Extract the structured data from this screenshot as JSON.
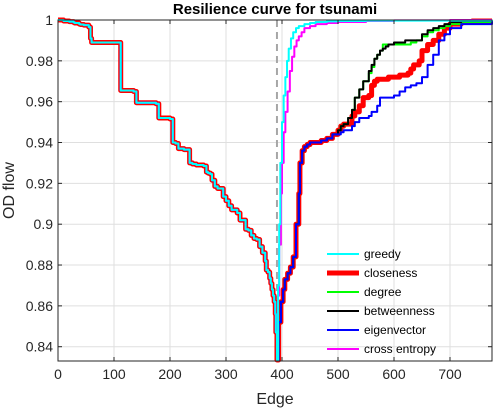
{
  "chart_data": {
    "type": "line",
    "title": "Resilience curve for tsunami",
    "xlabel": "Edge",
    "ylabel": "OD flow",
    "xlim": [
      0,
      775
    ],
    "ylim": [
      0.833,
      1.0
    ],
    "xticks": [
      0,
      100,
      200,
      300,
      400,
      500,
      600,
      700
    ],
    "yticks": [
      0.84,
      0.86,
      0.88,
      0.9,
      0.92,
      0.94,
      0.96,
      0.98,
      1
    ],
    "ytick_labels": [
      "0.84",
      "0.86",
      "0.88",
      "0.9",
      "0.92",
      "0.94",
      "0.96",
      "0.98",
      "1"
    ],
    "grid": true,
    "legend_position": "bottom-right",
    "vertical_line": {
      "x": 391,
      "style": "dashed",
      "color": "#a6a6a6"
    },
    "shared_prefix": {
      "x": [
        0,
        10,
        20,
        28,
        30,
        38,
        40,
        46,
        50,
        55,
        58,
        60,
        100,
        110,
        112,
        135,
        140,
        175,
        180,
        185,
        190,
        195,
        200,
        205,
        210,
        215,
        220,
        225,
        230,
        235,
        240,
        243,
        245,
        247,
        250,
        252,
        255,
        258,
        260,
        262,
        265,
        268,
        270,
        272,
        275,
        280,
        285,
        290,
        295,
        300,
        305,
        310,
        315,
        320,
        325,
        330,
        335,
        340,
        345,
        350,
        355,
        360,
        365,
        370,
        372,
        375,
        378,
        380,
        382,
        384,
        386,
        388,
        389,
        391
      ],
      "y": [
        1.0,
        0.9995,
        0.9992,
        0.9988,
        0.9985,
        0.998,
        0.9978,
        0.9975,
        0.9975,
        0.9965,
        0.991,
        0.989,
        0.989,
        0.989,
        0.9655,
        0.965,
        0.9595,
        0.959,
        0.952,
        0.952,
        0.952,
        0.952,
        0.9515,
        0.94,
        0.9395,
        0.937,
        0.937,
        0.9365,
        0.9365,
        0.93,
        0.9295,
        0.9295,
        0.9295,
        0.929,
        0.929,
        0.929,
        0.929,
        0.929,
        0.9285,
        0.9285,
        0.9255,
        0.925,
        0.925,
        0.9245,
        0.9215,
        0.9185,
        0.9175,
        0.9175,
        0.9135,
        0.9115,
        0.909,
        0.907,
        0.907,
        0.9055,
        0.902,
        0.902,
        0.8975,
        0.897,
        0.8945,
        0.893,
        0.8925,
        0.889,
        0.886,
        0.882,
        0.8775,
        0.8765,
        0.8735,
        0.871,
        0.868,
        0.865,
        0.862,
        0.856,
        0.847,
        0.8335
      ]
    },
    "series": [
      {
        "name": "greedy",
        "color": "#00ffff",
        "width": 2,
        "x": [
          391,
          393,
          395,
          397,
          400,
          403,
          406,
          409,
          412,
          416,
          420,
          425,
          430,
          440,
          450,
          460,
          480,
          500,
          550,
          775
        ],
        "y": [
          0.8335,
          0.87,
          0.9,
          0.93,
          0.95,
          0.963,
          0.972,
          0.98,
          0.986,
          0.991,
          0.994,
          0.996,
          0.997,
          0.998,
          0.9985,
          0.999,
          0.9993,
          0.9995,
          0.9997,
          1.0
        ]
      },
      {
        "name": "closeness",
        "color": "#ff0000",
        "width": 5,
        "x": [
          391,
          394,
          398,
          402,
          405,
          410,
          415,
          420,
          425,
          430,
          432,
          436,
          440,
          445,
          450,
          460,
          470,
          480,
          490,
          500,
          505,
          510,
          518,
          525,
          530,
          538,
          545,
          555,
          560,
          565,
          570,
          580,
          590,
          600,
          610,
          620,
          625,
          630,
          635,
          640,
          645,
          650,
          660,
          670,
          680,
          690,
          700,
          720,
          740,
          775
        ],
        "y": [
          0.8335,
          0.852,
          0.862,
          0.868,
          0.873,
          0.876,
          0.879,
          0.884,
          0.9,
          0.915,
          0.93,
          0.936,
          0.938,
          0.939,
          0.94,
          0.94,
          0.941,
          0.942,
          0.944,
          0.946,
          0.948,
          0.949,
          0.949,
          0.953,
          0.955,
          0.958,
          0.962,
          0.963,
          0.968,
          0.97,
          0.971,
          0.971,
          0.972,
          0.972,
          0.973,
          0.973,
          0.974,
          0.976,
          0.978,
          0.978,
          0.98,
          0.985,
          0.988,
          0.99,
          0.993,
          0.996,
          0.998,
          0.999,
          0.9995,
          1.0
        ]
      },
      {
        "name": "degree",
        "color": "#00ff00",
        "width": 2,
        "x": [
          391,
          394,
          398,
          402,
          405,
          410,
          415,
          420,
          425,
          430,
          432,
          436,
          440,
          445,
          450,
          460,
          470,
          480,
          490,
          500,
          505,
          510,
          518,
          525,
          530,
          538,
          545,
          555,
          560,
          565,
          570,
          575,
          580,
          585,
          595,
          610,
          630,
          640,
          650,
          660,
          670,
          680,
          690,
          700,
          720,
          775
        ],
        "y": [
          0.8335,
          0.852,
          0.862,
          0.868,
          0.873,
          0.876,
          0.879,
          0.884,
          0.9,
          0.915,
          0.93,
          0.936,
          0.938,
          0.939,
          0.94,
          0.94,
          0.941,
          0.942,
          0.944,
          0.946,
          0.948,
          0.949,
          0.952,
          0.956,
          0.962,
          0.966,
          0.97,
          0.974,
          0.977,
          0.981,
          0.983,
          0.985,
          0.988,
          0.988,
          0.988,
          0.988,
          0.989,
          0.99,
          0.992,
          0.994,
          0.995,
          0.996,
          0.997,
          0.998,
          0.999,
          1.0
        ]
      },
      {
        "name": "betweenness",
        "color": "#000000",
        "width": 2,
        "x": [
          391,
          394,
          398,
          402,
          405,
          410,
          415,
          420,
          425,
          430,
          432,
          436,
          440,
          445,
          450,
          460,
          470,
          480,
          490,
          500,
          505,
          510,
          518,
          525,
          530,
          538,
          545,
          555,
          560,
          565,
          570,
          575,
          580,
          585,
          590,
          600,
          610,
          620,
          625,
          630,
          640,
          650,
          660,
          670,
          680,
          690,
          700,
          720,
          775
        ],
        "y": [
          0.8335,
          0.852,
          0.862,
          0.868,
          0.873,
          0.876,
          0.879,
          0.884,
          0.9,
          0.915,
          0.93,
          0.936,
          0.938,
          0.939,
          0.94,
          0.94,
          0.941,
          0.942,
          0.944,
          0.946,
          0.948,
          0.949,
          0.952,
          0.956,
          0.962,
          0.966,
          0.97,
          0.975,
          0.978,
          0.981,
          0.983,
          0.985,
          0.986,
          0.987,
          0.988,
          0.989,
          0.989,
          0.99,
          0.99,
          0.99,
          0.99,
          0.993,
          0.995,
          0.996,
          0.997,
          0.998,
          0.999,
          0.9995,
          1.0
        ]
      },
      {
        "name": "eigenvector",
        "color": "#0000ff",
        "width": 2,
        "x": [
          391,
          394,
          398,
          402,
          405,
          410,
          415,
          420,
          425,
          430,
          432,
          436,
          440,
          445,
          450,
          460,
          470,
          480,
          490,
          500,
          505,
          510,
          518,
          525,
          530,
          538,
          545,
          555,
          560,
          565,
          570,
          575,
          580,
          590,
          600,
          610,
          620,
          630,
          640,
          650,
          660,
          670,
          680,
          685,
          690,
          700,
          720,
          775
        ],
        "y": [
          0.8335,
          0.852,
          0.862,
          0.868,
          0.873,
          0.876,
          0.879,
          0.884,
          0.9,
          0.915,
          0.93,
          0.936,
          0.938,
          0.939,
          0.94,
          0.94,
          0.941,
          0.942,
          0.944,
          0.944,
          0.945,
          0.946,
          0.946,
          0.948,
          0.95,
          0.952,
          0.952,
          0.953,
          0.955,
          0.955,
          0.958,
          0.962,
          0.962,
          0.962,
          0.963,
          0.965,
          0.967,
          0.968,
          0.969,
          0.972,
          0.978,
          0.983,
          0.99,
          0.99,
          0.993,
          0.996,
          0.998,
          1.0
        ]
      },
      {
        "name": "cross entropy",
        "color": "#ff00ff",
        "width": 2,
        "x": [
          391,
          393,
          395,
          398,
          400,
          403,
          406,
          410,
          414,
          418,
          422,
          426,
          430,
          435,
          440,
          450,
          460,
          480,
          500,
          550,
          600,
          700,
          775
        ],
        "y": [
          0.8335,
          0.865,
          0.89,
          0.915,
          0.93,
          0.945,
          0.955,
          0.965,
          0.975,
          0.982,
          0.987,
          0.99,
          0.992,
          0.994,
          0.996,
          0.997,
          0.998,
          0.9985,
          0.999,
          0.9995,
          0.9998,
          1.0,
          1.0
        ]
      }
    ]
  }
}
